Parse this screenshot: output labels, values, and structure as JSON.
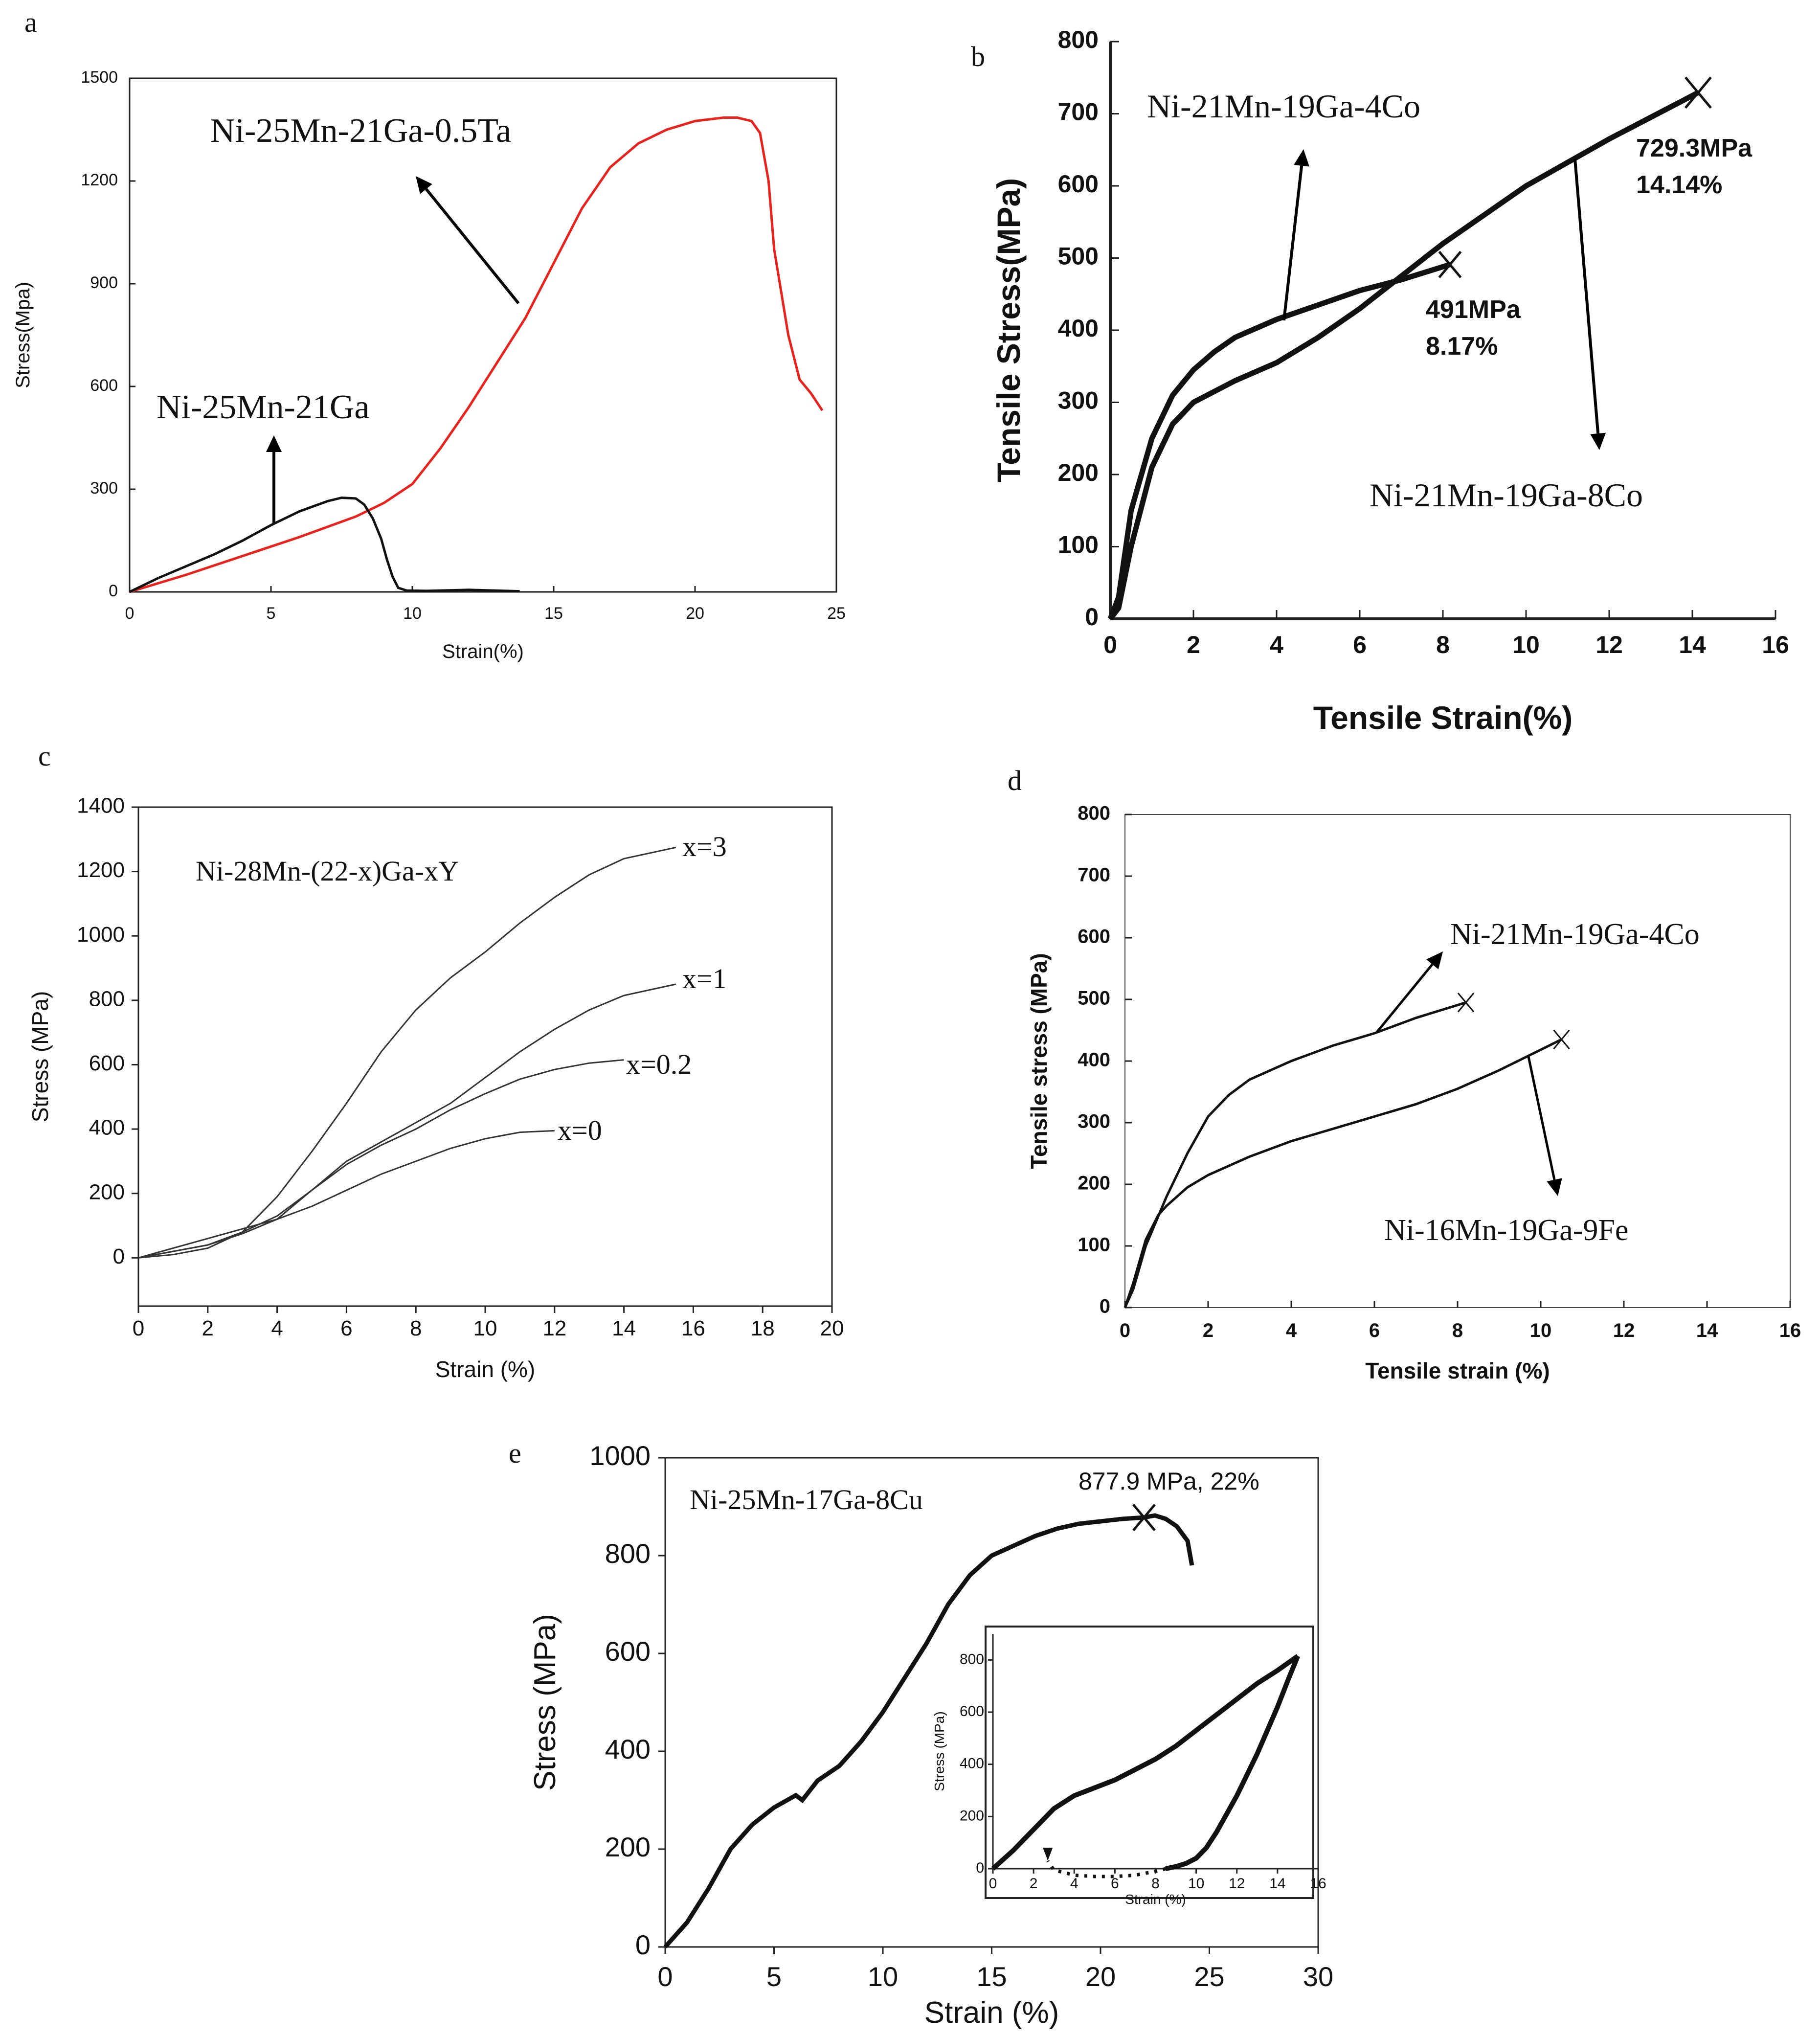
{
  "figure": {
    "panels": [
      "a",
      "b",
      "c",
      "d",
      "e"
    ]
  },
  "chart_data": [
    {
      "id": "a",
      "type": "line",
      "panel_label": "a",
      "xlabel": "Strain(%)",
      "ylabel": "Stress(Mpa)",
      "xlim": [
        0,
        25
      ],
      "ylim": [
        0,
        1500
      ],
      "xticks": [
        "0",
        "5",
        "10",
        "15",
        "20",
        "25"
      ],
      "yticks": [
        "0",
        "300",
        "600",
        "900",
        "1200",
        "1500"
      ],
      "series": [
        {
          "name": "Ni-25Mn-21Ga",
          "color": "#111111",
          "x": [
            0,
            1,
            2,
            3,
            4,
            5,
            6,
            7,
            7.5,
            8,
            8.3,
            8.6,
            8.9,
            9.1,
            9.3,
            9.5,
            9.8,
            10.5,
            12,
            13.8
          ],
          "y": [
            0,
            40,
            75,
            110,
            150,
            195,
            235,
            265,
            275,
            273,
            255,
            215,
            155,
            95,
            45,
            12,
            4,
            3,
            6,
            2
          ]
        },
        {
          "name": "Ni-25Mn-21Ga-0.5Ta",
          "color": "#e8221d",
          "x": [
            0,
            2,
            4,
            6,
            8,
            9,
            10,
            11,
            12,
            13,
            14,
            15,
            16,
            17,
            18,
            19,
            20,
            21,
            21.5,
            22,
            22.3,
            22.6,
            22.8,
            23,
            23.3,
            23.7,
            24.1,
            24.5
          ],
          "y": [
            0,
            50,
            105,
            160,
            220,
            260,
            315,
            420,
            540,
            670,
            800,
            960,
            1120,
            1240,
            1310,
            1350,
            1375,
            1385,
            1385,
            1375,
            1340,
            1200,
            1000,
            900,
            750,
            620,
            580,
            530
          ]
        }
      ],
      "annotations": [
        {
          "text": "Ni-25Mn-21Ga-0.5Ta"
        },
        {
          "text": "Ni-25Mn-21Ga"
        }
      ]
    },
    {
      "id": "b",
      "type": "line",
      "panel_label": "b",
      "xlabel": "Tensile Strain(%)",
      "ylabel": "Tensile Stress(MPa)",
      "xlim": [
        0,
        16
      ],
      "ylim": [
        0,
        800
      ],
      "xticks": [
        "0",
        "2",
        "4",
        "6",
        "8",
        "10",
        "12",
        "14",
        "16"
      ],
      "yticks": [
        "0",
        "100",
        "200",
        "300",
        "400",
        "500",
        "600",
        "700",
        "800"
      ],
      "series": [
        {
          "name": "Ni-21Mn-19Ga-4Co",
          "color": "#111111",
          "x": [
            0,
            0.2,
            0.5,
            1,
            1.5,
            2,
            2.5,
            3,
            4,
            5,
            6,
            7,
            8.17
          ],
          "y": [
            0,
            30,
            150,
            250,
            310,
            345,
            370,
            390,
            415,
            435,
            455,
            470,
            491
          ]
        },
        {
          "name": "Ni-21Mn-19Ga-8Co",
          "color": "#111111",
          "x": [
            0,
            0.2,
            0.5,
            1,
            1.5,
            2,
            3,
            4,
            5,
            6,
            7,
            8,
            10,
            12,
            14.14
          ],
          "y": [
            0,
            15,
            100,
            210,
            270,
            300,
            330,
            355,
            390,
            430,
            475,
            520,
            600,
            665,
            729.3
          ]
        }
      ],
      "annotations": [
        {
          "text": "Ni-21Mn-19Ga-4Co"
        },
        {
          "text": "Ni-21Mn-19Ga-8Co"
        },
        {
          "text": "491MPa"
        },
        {
          "text": "8.17%"
        },
        {
          "text": "729.3MPa"
        },
        {
          "text": "14.14%"
        }
      ]
    },
    {
      "id": "c",
      "type": "line",
      "panel_label": "c",
      "xlabel": "Strain (%)",
      "ylabel": "Stress (MPa)",
      "xlim": [
        0,
        20
      ],
      "ylim": [
        -150,
        1400
      ],
      "xticks": [
        "0",
        "2",
        "4",
        "6",
        "8",
        "10",
        "12",
        "14",
        "16",
        "18",
        "20"
      ],
      "yticks": [
        "0",
        "200",
        "400",
        "600",
        "800",
        "1000",
        "1200",
        "1400"
      ],
      "legend_title": "Ni-28Mn-(22-x)Ga-xY",
      "series": [
        {
          "name": "x=0",
          "color": "#333333",
          "x": [
            0,
            1,
            2,
            3,
            4,
            5,
            6,
            7,
            8,
            9,
            10,
            11,
            12
          ],
          "y": [
            0,
            30,
            60,
            90,
            120,
            160,
            210,
            260,
            300,
            340,
            370,
            390,
            395
          ]
        },
        {
          "name": "x=0.2",
          "color": "#333333",
          "x": [
            0,
            1,
            2,
            3,
            4,
            5,
            6,
            7,
            8,
            9,
            10,
            11,
            12,
            13,
            14
          ],
          "y": [
            0,
            20,
            40,
            80,
            130,
            210,
            290,
            350,
            400,
            460,
            510,
            555,
            585,
            605,
            615
          ]
        },
        {
          "name": "x=1",
          "color": "#333333",
          "x": [
            0,
            1,
            2,
            3,
            4,
            5,
            6,
            7,
            8,
            9,
            10,
            11,
            12,
            13,
            14,
            15.5
          ],
          "y": [
            0,
            20,
            40,
            75,
            120,
            210,
            300,
            360,
            420,
            480,
            560,
            640,
            710,
            770,
            815,
            850
          ]
        },
        {
          "name": "x=3",
          "color": "#333333",
          "x": [
            0,
            1,
            2,
            3,
            4,
            5,
            6,
            7,
            8,
            9,
            10,
            11,
            12,
            13,
            14,
            15.5
          ],
          "y": [
            0,
            10,
            30,
            80,
            190,
            330,
            480,
            640,
            770,
            870,
            950,
            1040,
            1120,
            1190,
            1240,
            1275
          ]
        }
      ]
    },
    {
      "id": "d",
      "type": "line",
      "panel_label": "d",
      "xlabel": "Tensile strain (%)",
      "ylabel": "Tensile stress (MPa)",
      "xlim": [
        0,
        16
      ],
      "ylim": [
        0,
        800
      ],
      "xticks": [
        "0",
        "2",
        "4",
        "6",
        "8",
        "10",
        "12",
        "14",
        "16"
      ],
      "yticks": [
        "0",
        "100",
        "200",
        "300",
        "400",
        "500",
        "600",
        "700",
        "800"
      ],
      "series": [
        {
          "name": "Ni-21Mn-19Ga-4Co",
          "color": "#111111",
          "x": [
            0,
            0.2,
            0.5,
            1,
            1.5,
            2,
            2.5,
            3,
            4,
            5,
            6,
            7,
            8.2
          ],
          "y": [
            0,
            30,
            100,
            180,
            250,
            310,
            345,
            370,
            400,
            425,
            445,
            470,
            495
          ]
        },
        {
          "name": "Ni-16Mn-19Ga-9Fe",
          "color": "#111111",
          "x": [
            0,
            0.2,
            0.5,
            0.8,
            1,
            1.5,
            2,
            3,
            4,
            5,
            6,
            7,
            8,
            9,
            10.5
          ],
          "y": [
            0,
            40,
            110,
            150,
            165,
            195,
            215,
            245,
            270,
            290,
            310,
            330,
            355,
            385,
            435
          ]
        }
      ],
      "annotations": [
        {
          "text": "Ni-21Mn-19Ga-4Co"
        },
        {
          "text": "Ni-16Mn-19Ga-9Fe"
        }
      ]
    },
    {
      "id": "e",
      "type": "line",
      "panel_label": "e",
      "xlabel": "Strain (%)",
      "ylabel": "Stress (MPa)",
      "xlim": [
        0,
        30
      ],
      "ylim": [
        0,
        1000
      ],
      "xticks": [
        "0",
        "5",
        "10",
        "15",
        "20",
        "25",
        "30"
      ],
      "yticks": [
        "0",
        "200",
        "400",
        "600",
        "800",
        "1000"
      ],
      "series": [
        {
          "name": "Ni-25Mn-17Ga-8Cu",
          "color": "#111111",
          "x": [
            0,
            1,
            2,
            3,
            4,
            5,
            6,
            6.3,
            7,
            8,
            9,
            10,
            11,
            12,
            13,
            14,
            15,
            16,
            17,
            18,
            19,
            20,
            21,
            22,
            22.5,
            23,
            23.5,
            24,
            24.2
          ],
          "y": [
            0,
            50,
            120,
            200,
            250,
            285,
            310,
            300,
            340,
            370,
            420,
            480,
            550,
            620,
            700,
            760,
            800,
            820,
            840,
            855,
            865,
            870,
            875,
            878,
            882,
            875,
            860,
            830,
            780
          ]
        }
      ],
      "annotations": [
        {
          "text": "Ni-25Mn-17Ga-8Cu"
        },
        {
          "text": "877.9 MPa, 22%"
        }
      ],
      "inset": {
        "type": "line",
        "xlabel": "Strain (%)",
        "ylabel": "Stress (MPa)",
        "xlim": [
          0,
          16
        ],
        "ylim": [
          0,
          900
        ],
        "xticks": [
          "0",
          "2",
          "4",
          "6",
          "8",
          "10",
          "12",
          "14",
          "16"
        ],
        "yticks": [
          "0",
          "200",
          "400",
          "600",
          "800"
        ],
        "loading": {
          "x": [
            0,
            1,
            2,
            3,
            4,
            5,
            6,
            7,
            8,
            9,
            10,
            11,
            12,
            13,
            14,
            15
          ],
          "y": [
            0,
            70,
            150,
            230,
            280,
            310,
            340,
            380,
            420,
            470,
            530,
            590,
            650,
            710,
            760,
            815
          ]
        },
        "unloading": {
          "x": [
            15,
            14.5,
            14,
            13,
            12,
            11,
            10.5,
            10,
            9.5,
            9,
            8.5
          ],
          "y": [
            815,
            720,
            620,
            440,
            280,
            140,
            80,
            40,
            20,
            8,
            0
          ]
        },
        "recovery": {
          "x": [
            8.5,
            8,
            7,
            6,
            5,
            4,
            3.5,
            3,
            2.7
          ],
          "y": [
            0,
            -10,
            -25,
            -30,
            -30,
            -25,
            -15,
            -5,
            30
          ]
        }
      }
    }
  ]
}
